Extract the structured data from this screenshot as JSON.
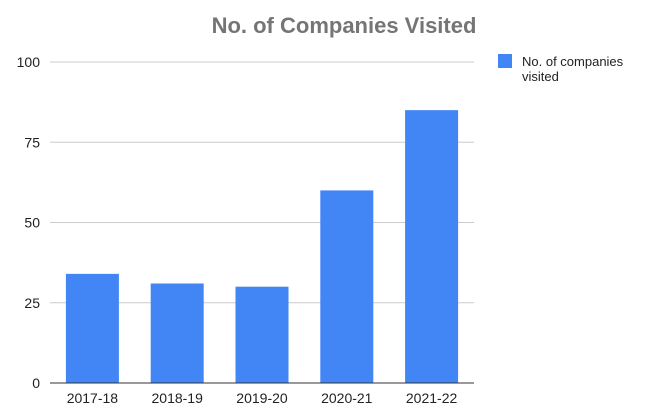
{
  "chart_data": {
    "type": "bar",
    "title": "No. of Companies Visited",
    "xlabel": "",
    "ylabel": "",
    "categories": [
      "2017-18",
      "2018-19",
      "2019-20",
      "2020-21",
      "2021-22"
    ],
    "series": [
      {
        "name_lines": [
          "No. of companies",
          "visited"
        ],
        "values": [
          34,
          31,
          30,
          60,
          85
        ],
        "color": "#4285f4"
      }
    ],
    "ylim": [
      0,
      100
    ],
    "yticks": [
      0,
      25,
      50,
      75,
      100
    ],
    "grid": true,
    "legend_position": "right"
  },
  "colors": {
    "bar": "#4285f4",
    "grid": "#cccccc",
    "axis": "#333333",
    "title": "#757575",
    "text": "#222222"
  }
}
